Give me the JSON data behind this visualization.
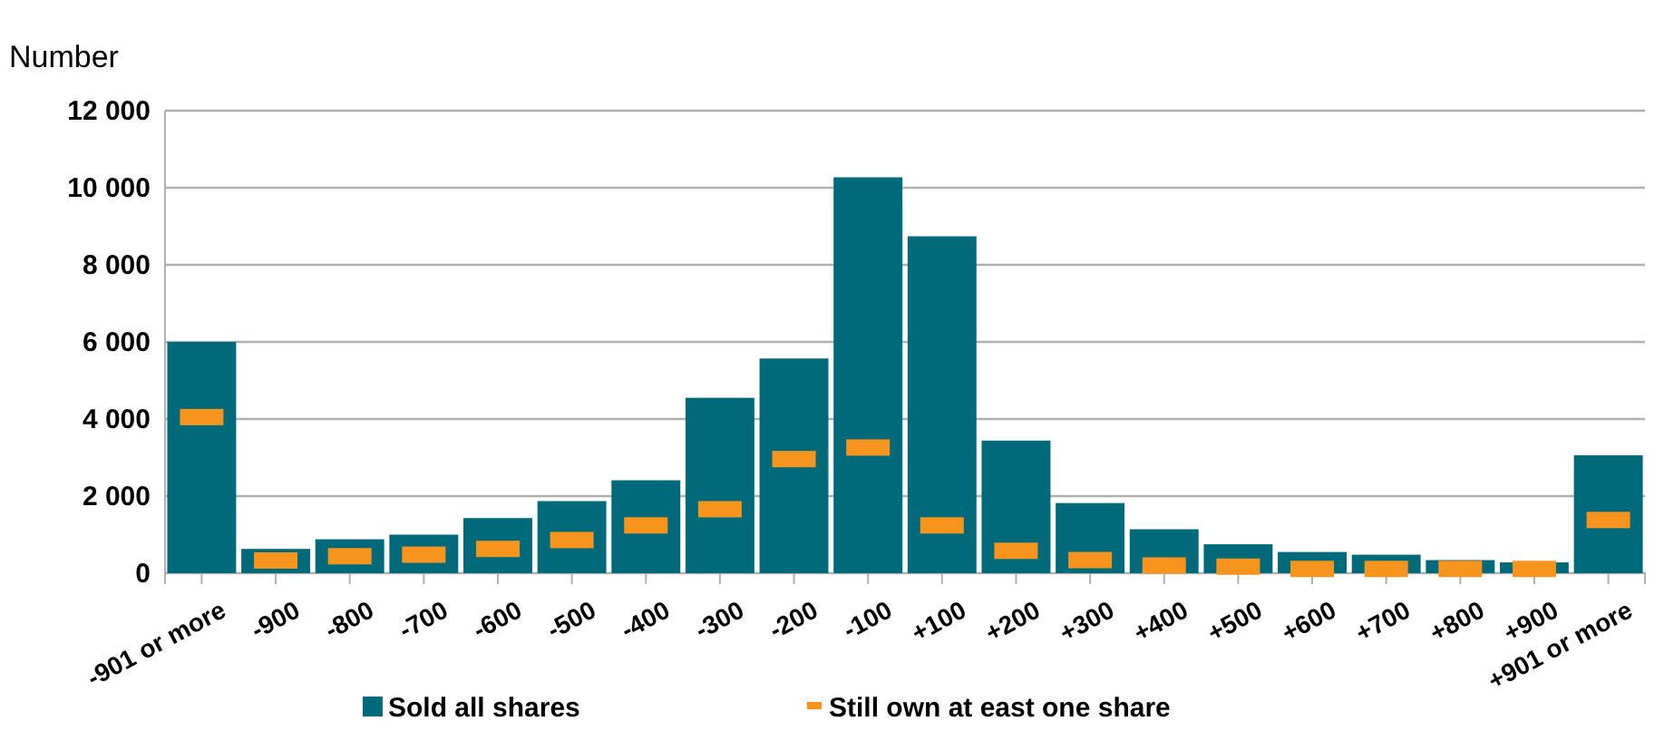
{
  "chart_data": {
    "type": "bar",
    "ylabel": "Number",
    "categories": [
      "-901 or more",
      "-900",
      "-800",
      "-700",
      "-600",
      "-500",
      "-400",
      "-300",
      "-200",
      "-100",
      "+100",
      "+200",
      "+300",
      "+400",
      "+500",
      "+600",
      "+700",
      "+800",
      "+900",
      "+901 or more"
    ],
    "series": [
      {
        "name": "Sold all shares",
        "color": "#006a7a",
        "values": [
          6000,
          630,
          880,
          1000,
          1430,
          1870,
          2410,
          4550,
          5570,
          10270,
          8740,
          3440,
          1820,
          1140,
          750,
          550,
          480,
          340,
          280,
          3060
        ]
      },
      {
        "name": "Still own at east one share",
        "type": "scatter",
        "color": "#f7941d",
        "values": [
          4050,
          330,
          440,
          480,
          630,
          860,
          1240,
          1660,
          2960,
          3260,
          1240,
          580,
          340,
          200,
          170,
          110,
          110,
          110,
          110,
          1380
        ]
      }
    ],
    "ylim": [
      0,
      12000
    ],
    "yticks": [
      {
        "value": 0,
        "label": "0"
      },
      {
        "value": 2000,
        "label": "2 000"
      },
      {
        "value": 4000,
        "label": "4 000"
      },
      {
        "value": 6000,
        "label": "6 000"
      },
      {
        "value": 8000,
        "label": "8 000"
      },
      {
        "value": 10000,
        "label": "10 000"
      },
      {
        "value": 12000,
        "label": "12 000"
      }
    ],
    "grid": "y",
    "legend": "bottom"
  }
}
